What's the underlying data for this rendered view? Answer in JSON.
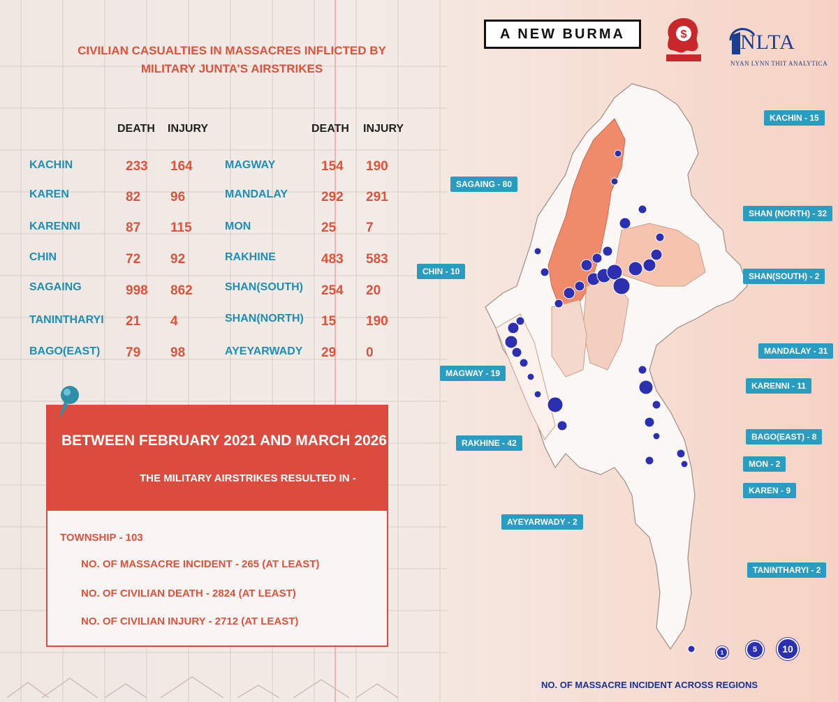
{
  "title": "CIVILIAN CASUALTIES IN MASSACRES INFLICTED BY MILITARY JUNTA’S AIRSTRIKES",
  "title_lines": [
    "CIVILIAN CASUALTIES IN MASSACRES INFLICTED BY",
    "MILITARY JUNTA’S AIRSTRIKES"
  ],
  "headers": {
    "death": "DEATH",
    "injury": "INJURY"
  },
  "table_left": [
    {
      "region": "KACHIN",
      "death": "233",
      "injury": "164"
    },
    {
      "region": "KAREN",
      "death": "82",
      "injury": "96"
    },
    {
      "region": "KARENNI",
      "death": "87",
      "injury": "115"
    },
    {
      "region": "CHIN",
      "death": "72",
      "injury": "92"
    },
    {
      "region": "SAGAING",
      "death": "998",
      "injury": "862"
    },
    {
      "region": "TANINTHARYI",
      "death": "21",
      "injury": "4"
    },
    {
      "region": "BAGO(EAST)",
      "death": "79",
      "injury": "98"
    }
  ],
  "table_right": [
    {
      "region": "MAGWAY",
      "death": "154",
      "injury": "190"
    },
    {
      "region": "MANDALAY",
      "death": "292",
      "injury": "291"
    },
    {
      "region": "MON",
      "death": "25",
      "injury": "7"
    },
    {
      "region": "RAKHINE",
      "death": "483",
      "injury": "583"
    },
    {
      "region": "SHAN(SOUTH)",
      "death": "254",
      "injury": "20"
    },
    {
      "region": "SHAN(NORTH)",
      "death": "15",
      "injury": "190"
    },
    {
      "region": "AYEYARWADY",
      "death": "29",
      "injury": "0"
    }
  ],
  "logos": {
    "anewburma": "A NEW BURMA",
    "nlta": "NLTA",
    "nlta_sub": "NYAN LYNN THIT ANALYTICA"
  },
  "summary": {
    "period": "BETWEEN FEBRUARY 2021 AND MARCH 2026",
    "lead": "THE MILITARY AIRSTRIKES RESULTED IN -",
    "township": "TOWNSHIP - 103",
    "incidents": "NO. OF MASSACRE INCIDENT - 265 (AT LEAST)",
    "deaths": "NO. OF CIVILIAN DEATH - 2824 (AT LEAST)",
    "injuries": "NO. OF CIVILIAN INJURY - 2712 (AT LEAST)"
  },
  "map_labels": [
    {
      "text": "KACHIN - 15"
    },
    {
      "text": "SAGAING - 80"
    },
    {
      "text": "SHAN (NORTH) - 32"
    },
    {
      "text": "CHIN - 10"
    },
    {
      "text": "SHAN(SOUTH) - 2"
    },
    {
      "text": "MANDALAY - 31"
    },
    {
      "text": "MAGWAY - 19"
    },
    {
      "text": "KARENNI - 11"
    },
    {
      "text": "RAKHINE - 42"
    },
    {
      "text": "BAGO(EAST) - 8"
    },
    {
      "text": "MON - 2"
    },
    {
      "text": "KAREN - 9"
    },
    {
      "text": "AYEYARWADY - 2"
    },
    {
      "text": "TANINTHARYI - 2"
    }
  ],
  "legend": {
    "title": "NO. OF MASSACRE INCIDENT ACROSS REGIONS",
    "items": [
      "1",
      "5",
      "10"
    ]
  },
  "colors": {
    "accent_red": "#dc4c3e",
    "label_blue": "#2a9cc0",
    "dot_blue": "#2b2fb0",
    "sagaing_fill": "#ef8a6a"
  }
}
